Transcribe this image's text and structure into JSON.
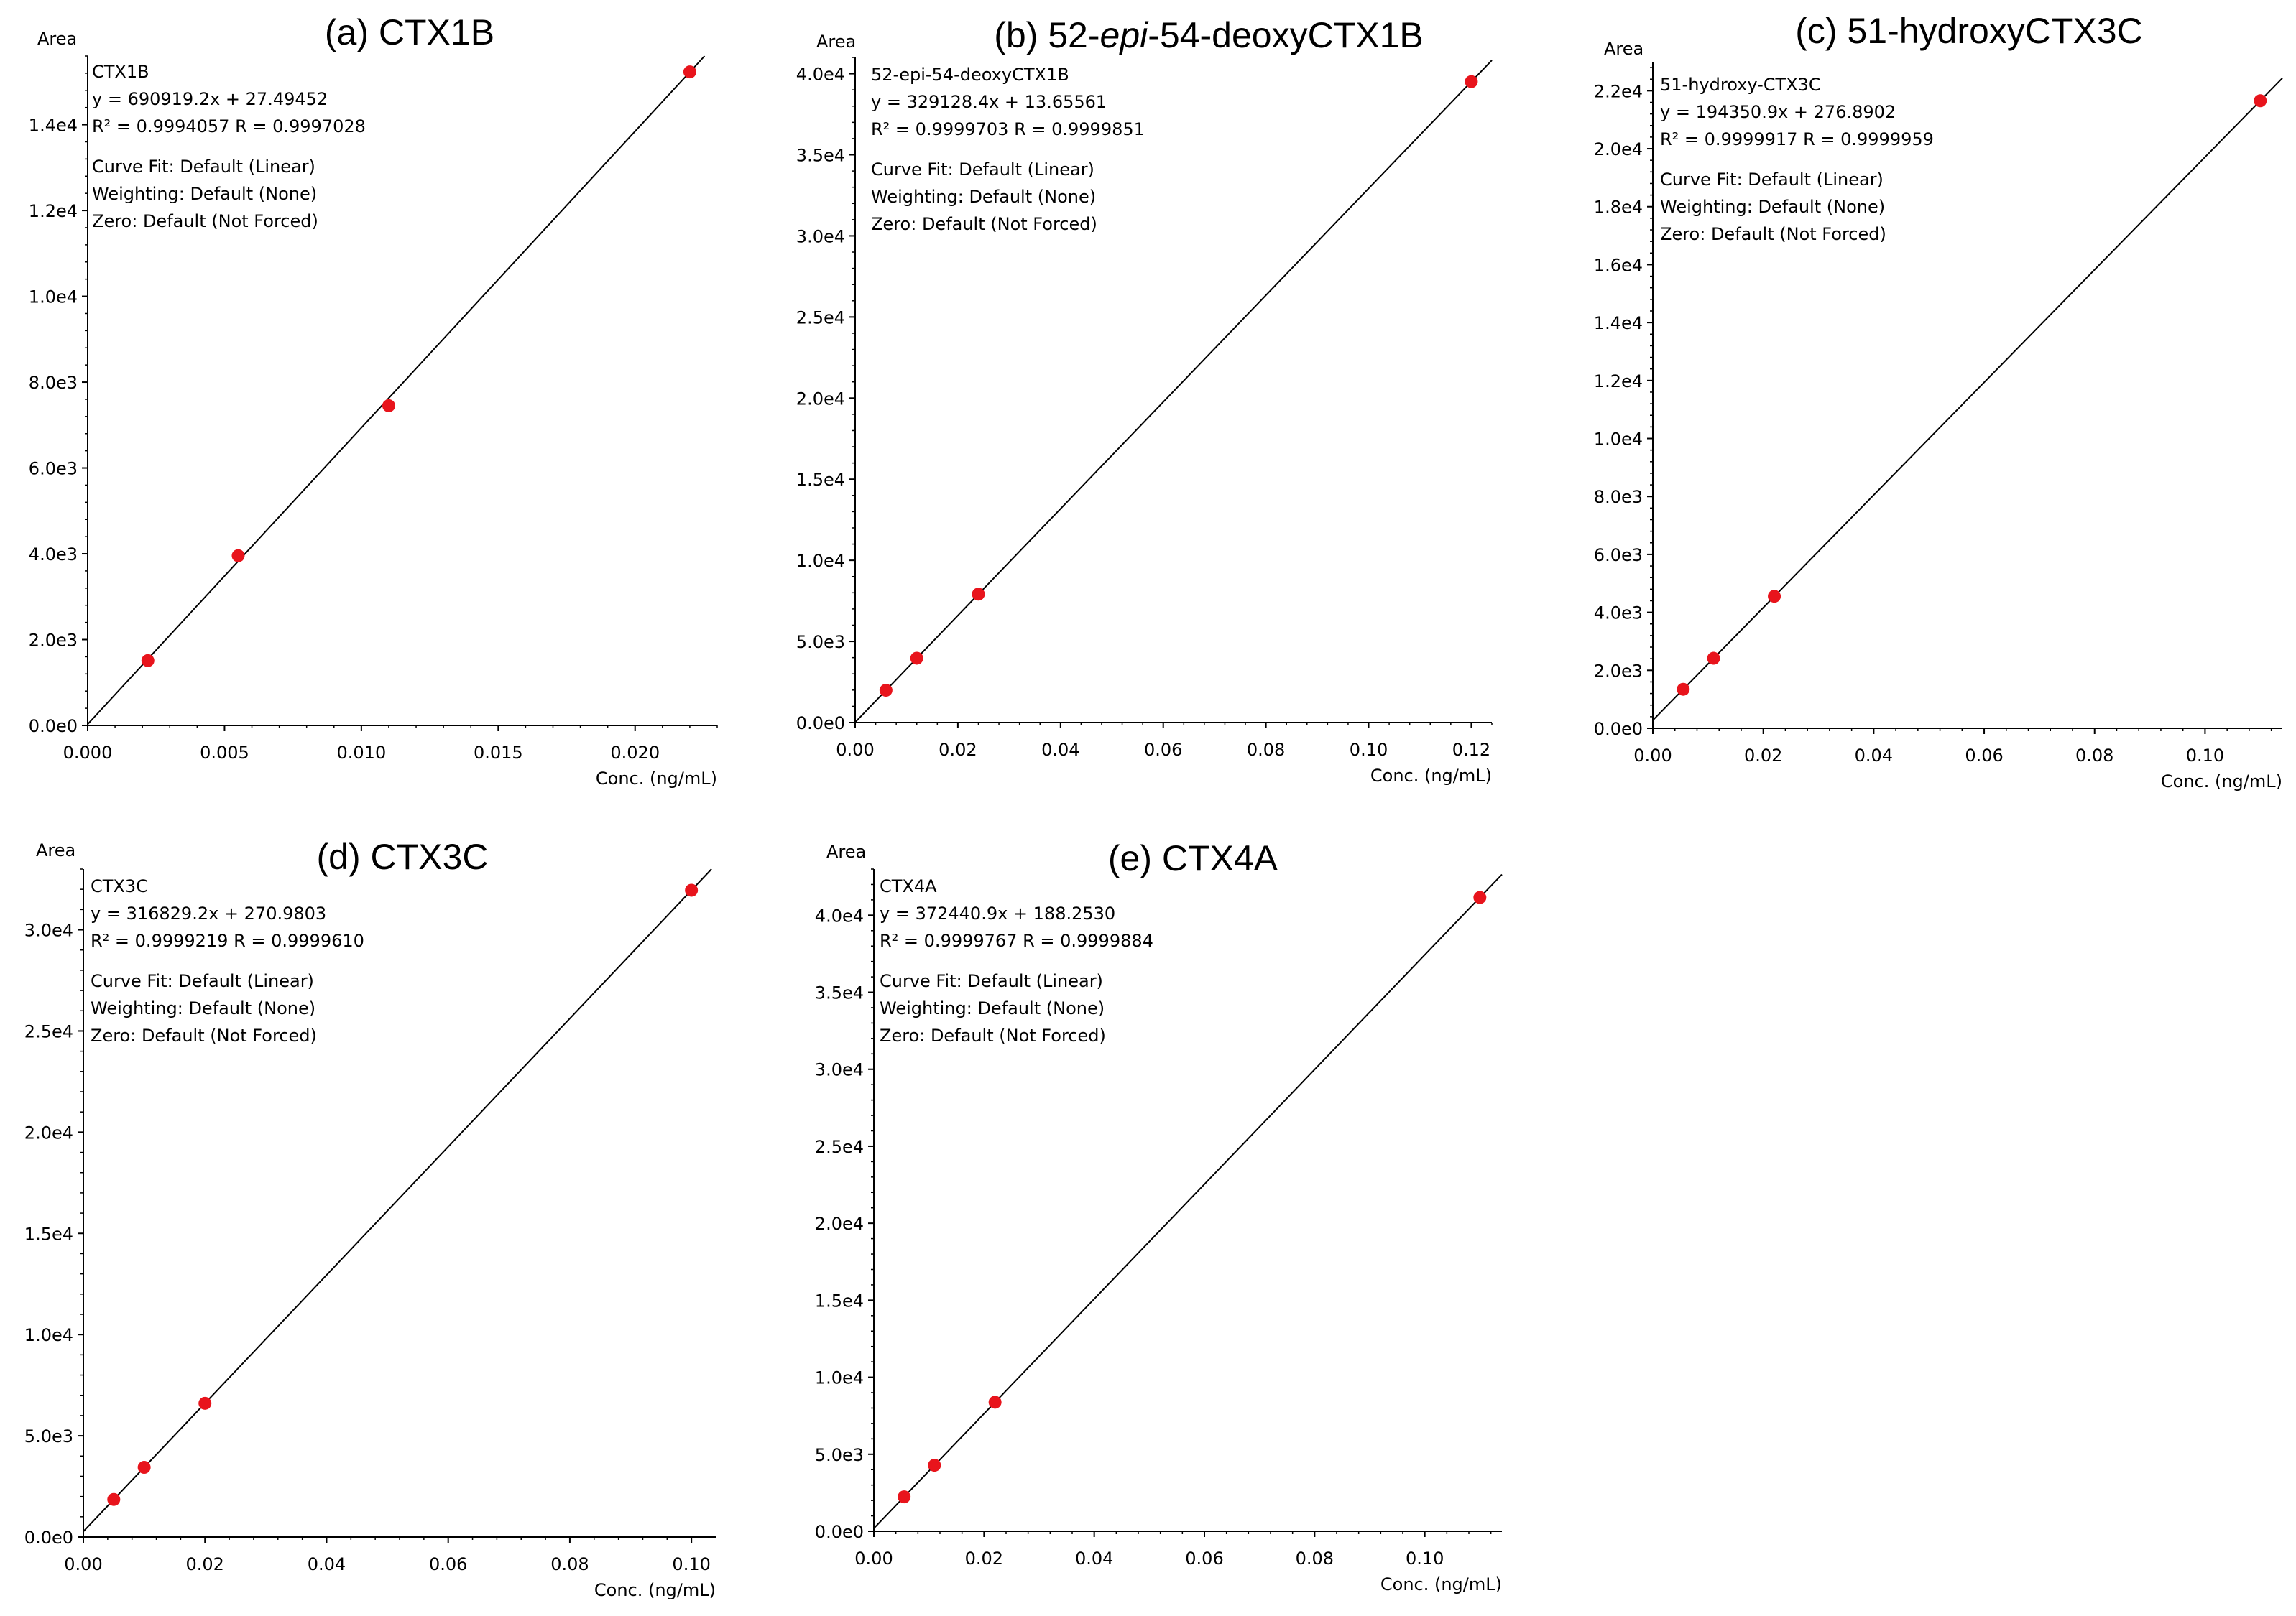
{
  "chart_data": [
    {
      "type": "scatter",
      "panel_label": "(a) ",
      "title": "CTX1B",
      "title_italic": "",
      "title_rest": "",
      "ylabel": "Area",
      "xlabel": "Conc. (ng/mL)",
      "xlim": [
        0,
        0.023
      ],
      "ylim": [
        0,
        15600
      ],
      "xticks": [
        "0.000",
        "0.005",
        "0.010",
        "0.015",
        "0.020"
      ],
      "xtick_values": [
        0,
        0.005,
        0.01,
        0.015,
        0.02
      ],
      "yticks": [
        "0.0e0",
        "2.0e3",
        "4.0e3",
        "6.0e3",
        "8.0e3",
        "1.0e4",
        "1.2e4",
        "1.4e4"
      ],
      "ytick_values": [
        0,
        2000,
        4000,
        6000,
        8000,
        10000,
        12000,
        14000
      ],
      "slope": 690919.2,
      "intercept": 27.49452,
      "x": [
        0.0022,
        0.0055,
        0.011,
        0.022
      ],
      "y": [
        1510,
        3955,
        7450,
        15230
      ],
      "annotation": [
        "CTX1B",
        "y = 690919.2x + 27.49452",
        "R² = 0.9994057    R = 0.9997028",
        "Curve Fit: Default (Linear)",
        "Weighting: Default (None)",
        "Zero: Default (Not Forced)"
      ]
    },
    {
      "type": "scatter",
      "panel_label": "(b) ",
      "title": "52-",
      "title_italic": "epi",
      "title_rest": "-54-deoxyCTX1B",
      "ylabel": "Area",
      "xlabel": "Conc. (ng/mL)",
      "xlim": [
        0,
        0.124
      ],
      "ylim": [
        0,
        41000
      ],
      "xticks": [
        "0.00",
        "0.02",
        "0.04",
        "0.06",
        "0.08",
        "0.10",
        "0.12"
      ],
      "xtick_values": [
        0,
        0.02,
        0.04,
        0.06,
        0.08,
        0.1,
        0.12
      ],
      "yticks": [
        "0.0e0",
        "5.0e3",
        "1.0e4",
        "1.5e4",
        "2.0e4",
        "2.5e4",
        "3.0e4",
        "3.5e4",
        "4.0e4"
      ],
      "ytick_values": [
        0,
        5000,
        10000,
        15000,
        20000,
        25000,
        30000,
        35000,
        40000
      ],
      "slope": 329128.4,
      "intercept": 13.65561,
      "x": [
        0.006,
        0.012,
        0.024,
        0.12
      ],
      "y": [
        1990,
        3965,
        7915,
        39510
      ],
      "annotation": [
        "52-epi-54-deoxyCTX1B",
        "y = 329128.4x + 13.65561",
        "R² = 0.9999703    R = 0.9999851",
        "Curve Fit: Default (Linear)",
        "Weighting: Default (None)",
        "Zero: Default (Not Forced)"
      ]
    },
    {
      "type": "scatter",
      "panel_label": "(c) ",
      "title": "51-hydroxyCTX3C",
      "title_italic": "",
      "title_rest": "",
      "ylabel": "Area",
      "xlabel": "Conc. (ng/mL)",
      "xlim": [
        0,
        0.114
      ],
      "ylim": [
        0,
        23000
      ],
      "xticks": [
        "0.00",
        "0.02",
        "0.04",
        "0.06",
        "0.08",
        "0.10"
      ],
      "xtick_values": [
        0,
        0.02,
        0.04,
        0.06,
        0.08,
        0.1
      ],
      "yticks": [
        "0.0e0",
        "2.0e3",
        "4.0e3",
        "6.0e3",
        "8.0e3",
        "1.0e4",
        "1.2e4",
        "1.4e4",
        "1.6e4",
        "1.8e4",
        "2.0e4",
        "2.2e4"
      ],
      "ytick_values": [
        0,
        2000,
        4000,
        6000,
        8000,
        10000,
        12000,
        14000,
        16000,
        18000,
        20000,
        22000
      ],
      "slope": 194350.9,
      "intercept": 276.8902,
      "x": [
        0.0055,
        0.011,
        0.022,
        0.11
      ],
      "y": [
        1345,
        2415,
        4555,
        21655
      ],
      "annotation": [
        "51-hydroxy-CTX3C",
        "y = 194350.9x + 276.8902",
        "R² = 0.9999917    R = 0.9999959",
        "Curve Fit: Default (Linear)",
        "Weighting: Default (None)",
        "Zero: Default (Not Forced)"
      ]
    },
    {
      "type": "scatter",
      "panel_label": "(d) ",
      "title": "CTX3C",
      "title_italic": "",
      "title_rest": "",
      "ylabel": "Area",
      "xlabel": "Conc. (ng/mL)",
      "xlim": [
        0,
        0.104
      ],
      "ylim": [
        0,
        33000
      ],
      "xticks": [
        "0.00",
        "0.02",
        "0.04",
        "0.06",
        "0.08",
        "0.10"
      ],
      "xtick_values": [
        0,
        0.02,
        0.04,
        0.06,
        0.08,
        0.1
      ],
      "yticks": [
        "0.0e0",
        "5.0e3",
        "1.0e4",
        "1.5e4",
        "2.0e4",
        "2.5e4",
        "3.0e4"
      ],
      "ytick_values": [
        0,
        5000,
        10000,
        15000,
        20000,
        25000,
        30000
      ],
      "slope": 316829.2,
      "intercept": 270.9803,
      "x": [
        0.005,
        0.01,
        0.02,
        0.1
      ],
      "y": [
        1855,
        3440,
        6605,
        31955
      ],
      "annotation": [
        "CTX3C",
        "y = 316829.2x + 270.9803",
        "R² = 0.9999219    R = 0.9999610",
        "Curve Fit: Default (Linear)",
        "Weighting: Default (None)",
        "Zero: Default (Not Forced)"
      ]
    },
    {
      "type": "scatter",
      "panel_label": "(e) ",
      "title": "CTX4A",
      "title_italic": "",
      "title_rest": "",
      "ylabel": "Area",
      "xlabel": "Conc. (ng/mL)",
      "xlim": [
        0,
        0.114
      ],
      "ylim": [
        0,
        43000
      ],
      "xticks": [
        "0.00",
        "0.02",
        "0.04",
        "0.06",
        "0.08",
        "0.10"
      ],
      "xtick_values": [
        0,
        0.02,
        0.04,
        0.06,
        0.08,
        0.1
      ],
      "yticks": [
        "0.0e0",
        "5.0e3",
        "1.0e4",
        "1.5e4",
        "2.0e4",
        "2.5e4",
        "3.0e4",
        "3.5e4",
        "4.0e4"
      ],
      "ytick_values": [
        0,
        5000,
        10000,
        15000,
        20000,
        25000,
        30000,
        35000,
        40000
      ],
      "slope": 372440.9,
      "intercept": 188.253,
      "x": [
        0.0055,
        0.011,
        0.022,
        0.11
      ],
      "y": [
        2235,
        4285,
        8380,
        41155
      ],
      "annotation": [
        "CTX4A",
        "y = 372440.9x + 188.2530",
        "R² = 0.9999767    R = 0.9999884",
        "Curve Fit: Default (Linear)",
        "Weighting: Default (None)",
        "Zero: Default (Not Forced)"
      ]
    }
  ],
  "colors": {
    "point": "#e8141c",
    "line": "#000000",
    "axis": "#000000",
    "text": "#000000"
  }
}
